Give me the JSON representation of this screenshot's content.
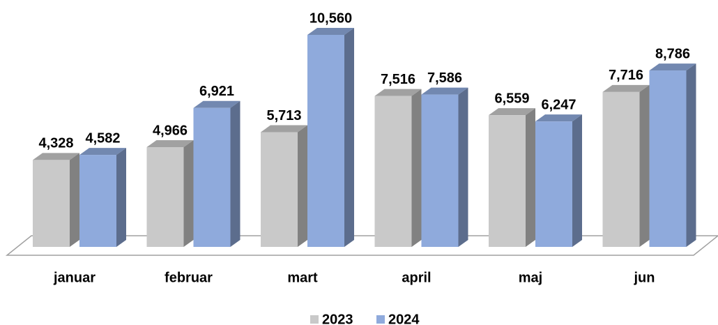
{
  "chart_data": {
    "type": "bar3d",
    "categories": [
      "januar",
      "februar",
      "mart",
      "april",
      "maj",
      "jun"
    ],
    "series": [
      {
        "name": "2023",
        "color": "#c9c9c9",
        "values": [
          4328,
          4966,
          5713,
          7516,
          6559,
          7716
        ],
        "value_labels": [
          "4,328",
          "4,966",
          "5,713",
          "7,516",
          "6,559",
          "7,716"
        ]
      },
      {
        "name": "2024",
        "color": "#8faadc",
        "values": [
          4582,
          6921,
          10560,
          7586,
          6247,
          8786
        ],
        "value_labels": [
          "4,582",
          "6,921",
          "10,560",
          "7,586",
          "6,247",
          "8,786"
        ]
      }
    ]
  }
}
